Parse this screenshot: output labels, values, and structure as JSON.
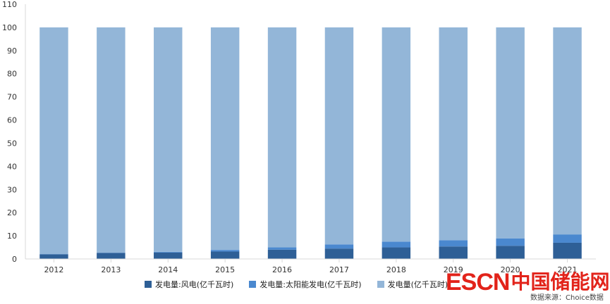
{
  "chart_data": {
    "type": "bar",
    "stacked": true,
    "categories": [
      "2012",
      "2013",
      "2014",
      "2015",
      "2016",
      "2017",
      "2018",
      "2019",
      "2020",
      "2021"
    ],
    "series": [
      {
        "name": "发电量:风电(亿千瓦时)",
        "color": "#2e5f96",
        "values": [
          2.0,
          2.6,
          2.8,
          3.2,
          4.0,
          4.5,
          5.0,
          5.4,
          5.7,
          7.0
        ]
      },
      {
        "name": "发电量:太阳能发电(亿千瓦时)",
        "color": "#4a88cf",
        "values": [
          0.1,
          0.1,
          0.3,
          0.7,
          1.0,
          1.8,
          2.5,
          2.7,
          3.2,
          3.6
        ]
      },
      {
        "name": "发电量(亿千瓦时)",
        "color": "#93b6d8",
        "values": [
          97.9,
          97.3,
          96.9,
          96.1,
          95.0,
          93.7,
          92.5,
          91.9,
          91.1,
          89.4
        ]
      }
    ],
    "yticks": [
      0,
      10,
      20,
      30,
      40,
      50,
      60,
      70,
      80,
      90,
      100,
      110
    ],
    "ylim": [
      0,
      110
    ],
    "grid": false,
    "legend": "bottom"
  },
  "watermark": {
    "latin": "ESCN",
    "chinese": "中国储能网"
  },
  "source_text": "数据来源：Choice数据"
}
